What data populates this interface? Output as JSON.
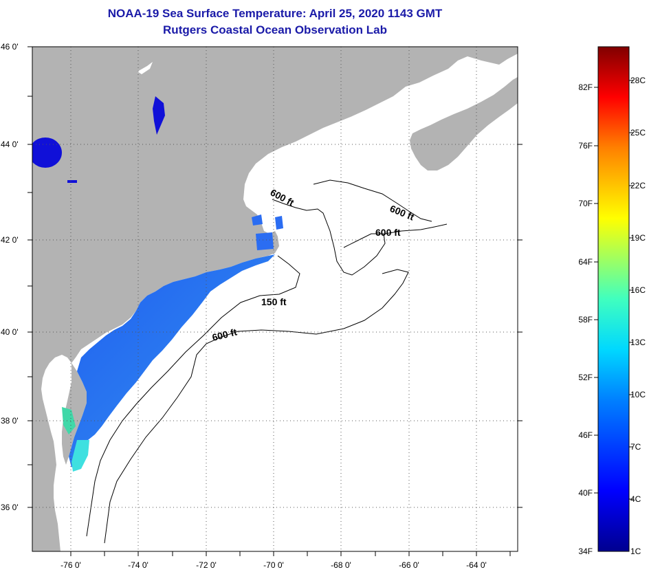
{
  "title": {
    "line1": "NOAA-19 Sea Surface Temperature:  April 25, 2020 1143 GMT",
    "line2": "Rutgers Coastal Ocean Observation Lab",
    "color": "#1a1aa8"
  },
  "map": {
    "land_color": "#b3b3b3",
    "ocean_color": "#ffffff",
    "lat_labels": [
      "46 0'",
      "44 0'",
      "42 0'",
      "40 0'",
      "38 0'",
      "36 0'"
    ],
    "lon_labels": [
      "-76 0'",
      "-74 0'",
      "-72 0'",
      "-70 0'",
      "-68 0'",
      "-66 0'",
      "-64 0'"
    ],
    "contour_labels": [
      "600 ft",
      "600 ft",
      "600 ft",
      "150 ft",
      "600 ft"
    ]
  },
  "colorbar": {
    "fahrenheit": [
      "82F",
      "76F",
      "70F",
      "64F",
      "58F",
      "52F",
      "46F",
      "40F",
      "34F"
    ],
    "celsius": [
      "28C",
      "25C",
      "22C",
      "19C",
      "16C",
      "13C",
      "10C",
      "7C",
      "4C",
      "1C"
    ]
  }
}
